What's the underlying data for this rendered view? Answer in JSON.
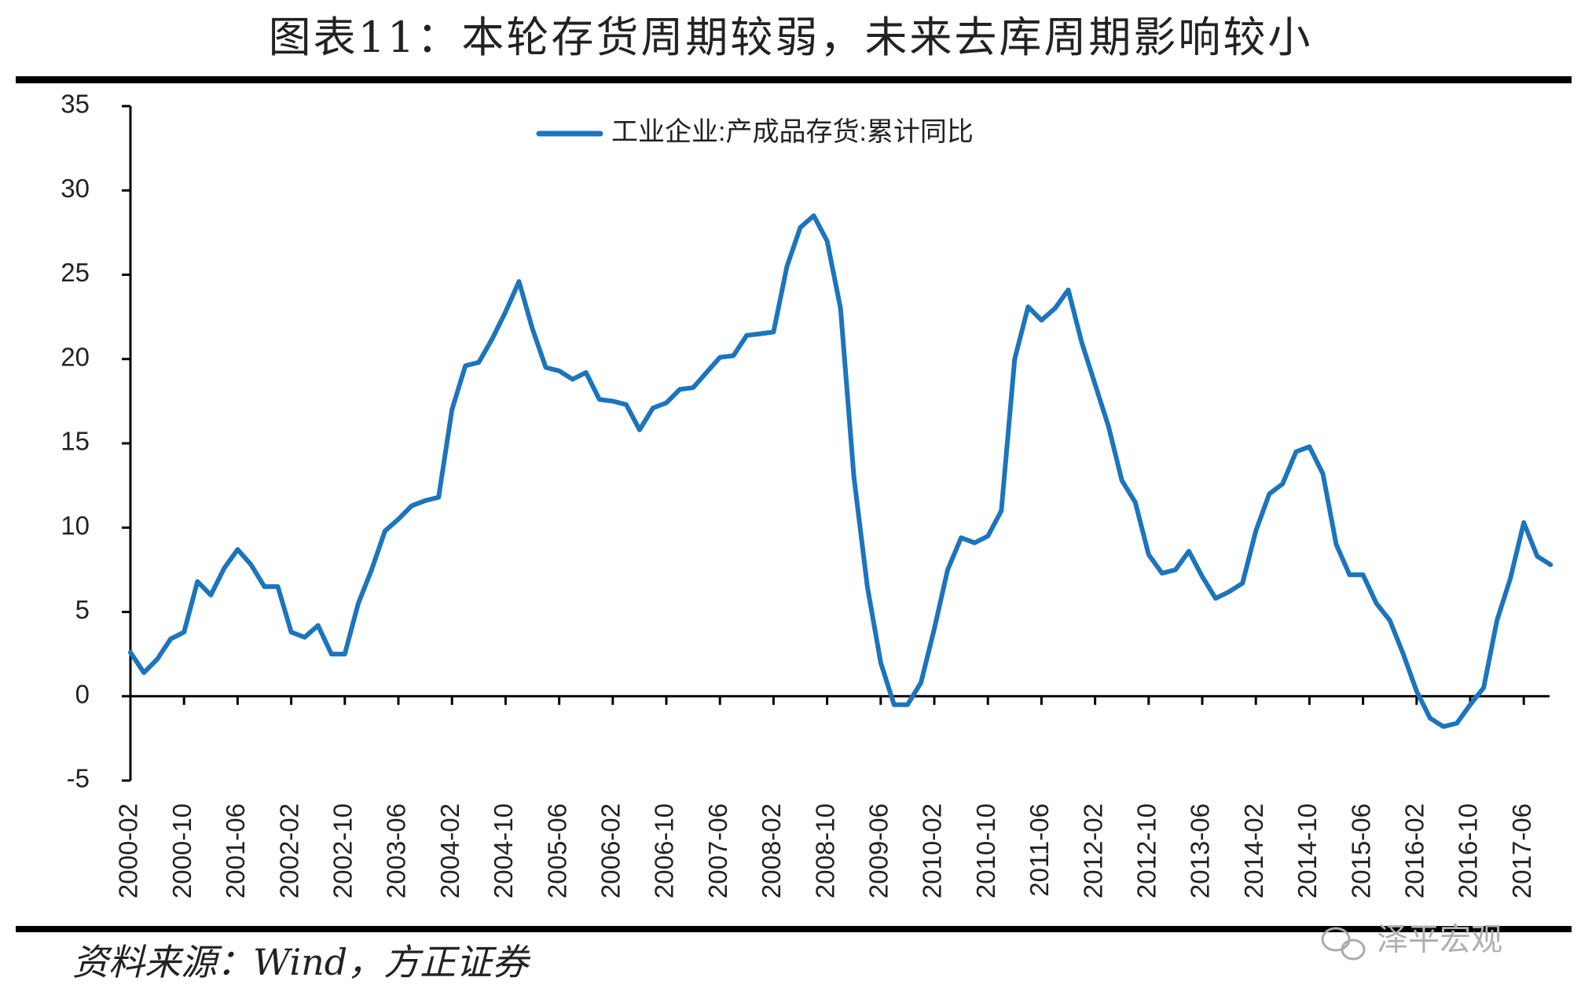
{
  "title": "图表11：本轮存货周期较弱，未来去库周期影响较小",
  "source": "资料来源：Wind，方正证券",
  "watermark": "泽平宏观",
  "chart_data": {
    "type": "line",
    "categories": [
      "2000-02",
      null,
      null,
      null,
      "2000-10",
      null,
      null,
      null,
      "2001-06",
      null,
      null,
      null,
      "2002-02",
      null,
      null,
      null,
      "2002-10",
      null,
      null,
      null,
      "2003-06",
      null,
      null,
      null,
      "2004-02",
      null,
      null,
      null,
      "2004-10",
      null,
      null,
      null,
      "2005-06",
      null,
      null,
      null,
      "2006-02",
      null,
      null,
      null,
      "2006-10",
      null,
      null,
      null,
      "2007-06",
      null,
      null,
      null,
      "2008-02",
      null,
      null,
      null,
      "2008-10",
      null,
      null,
      null,
      "2009-06",
      null,
      null,
      null,
      "2010-02",
      null,
      null,
      null,
      "2010-10",
      null,
      null,
      null,
      "2011-06",
      null,
      null,
      null,
      "2012-02",
      null,
      null,
      null,
      "2012-10",
      null,
      null,
      null,
      "2013-06",
      null,
      null,
      null,
      "2014-02",
      null,
      null,
      null,
      "2014-10",
      null,
      null,
      null,
      "2015-06",
      null,
      null,
      null,
      "2016-02",
      null,
      null,
      null,
      "2016-10",
      null,
      null,
      null,
      "2017-06",
      null,
      null
    ],
    "series": [
      {
        "name": "工业企业:产成品存货:累计同比",
        "color": "#1c75bc",
        "values": [
          2.6,
          1.4,
          2.2,
          3.4,
          3.8,
          6.8,
          6.0,
          7.6,
          8.7,
          7.8,
          6.5,
          6.5,
          3.8,
          3.5,
          4.2,
          2.5,
          2.5,
          5.5,
          7.5,
          9.8,
          10.5,
          11.3,
          11.6,
          11.8,
          17.0,
          19.6,
          19.8,
          21.2,
          22.8,
          24.6,
          21.8,
          19.5,
          19.3,
          18.8,
          19.2,
          17.6,
          17.5,
          17.3,
          15.8,
          17.1,
          17.4,
          18.2,
          18.3,
          19.2,
          20.1,
          20.2,
          21.4,
          21.5,
          21.6,
          25.5,
          27.8,
          28.5,
          27.0,
          23.0,
          13.0,
          6.5,
          2.0,
          -0.5,
          -0.5,
          0.8,
          4.0,
          7.5,
          9.4,
          9.1,
          9.5,
          11.0,
          20.0,
          23.1,
          22.3,
          23.0,
          24.1,
          21.0,
          18.5,
          16.0,
          12.8,
          11.5,
          8.4,
          7.3,
          7.5,
          8.6,
          7.1,
          5.8,
          6.2,
          6.7,
          9.8,
          12.0,
          12.6,
          14.5,
          14.8,
          13.2,
          9.0,
          7.2,
          7.2,
          5.5,
          4.5,
          2.5,
          0.3,
          -1.3,
          -1.8,
          -1.6,
          -0.5,
          0.5,
          4.5,
          7.0,
          10.3,
          8.3,
          7.8
        ]
      }
    ],
    "ylim": [
      -5,
      35
    ],
    "yticks": [
      -5,
      0,
      5,
      10,
      15,
      20,
      25,
      30,
      35
    ],
    "legend": "top"
  }
}
